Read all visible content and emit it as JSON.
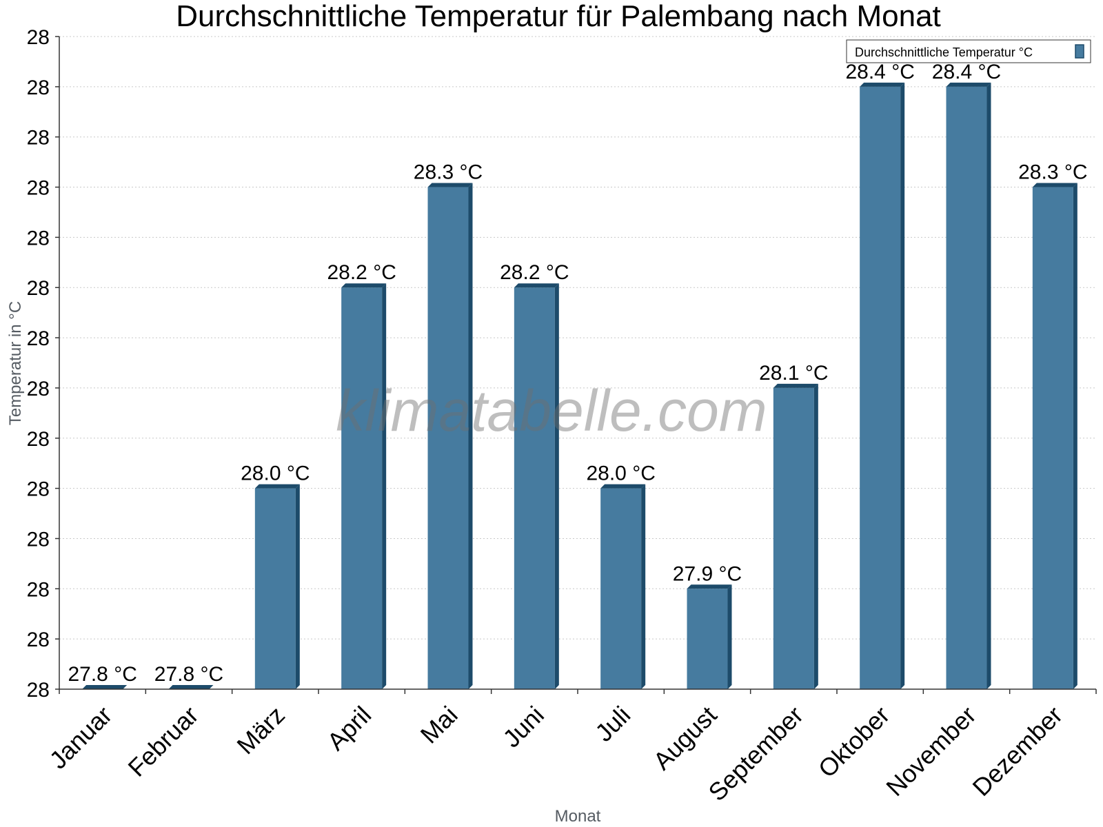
{
  "watermark": "klimatabelle.com",
  "colors": {
    "bar_front": "#467b9f",
    "bar_side": "#1d4b6a",
    "bar_top": "#1d4b6a",
    "grid": "#c8c8c8",
    "axis": "#333333"
  },
  "chart_data": {
    "type": "bar",
    "title": "Durchschnittliche Temperatur für Palembang nach Monat",
    "xlabel": "Monat",
    "ylabel": "Temperatur in °C",
    "categories": [
      "Januar",
      "Februar",
      "März",
      "April",
      "Mai",
      "Juni",
      "Juli",
      "August",
      "September",
      "Oktober",
      "November",
      "Dezember"
    ],
    "series": [
      {
        "name": "Durchschnittliche Temperatur °C",
        "values": [
          27.8,
          27.8,
          28.0,
          28.2,
          28.3,
          28.2,
          28.0,
          27.9,
          28.1,
          28.4,
          28.4,
          28.3
        ],
        "data_labels": [
          "27.8 °C",
          "27.8 °C",
          "28.0 °C",
          "28.2 °C",
          "28.3 °C",
          "28.2 °C",
          "28.0 °C",
          "27.9 °C",
          "28.1 °C",
          "28.4 °C",
          "28.4 °C",
          "28.3 °C"
        ]
      }
    ],
    "ylim": [
      27.8,
      28.45
    ],
    "y_tick_values": [
      27.8,
      27.85,
      27.9,
      27.95,
      28.0,
      28.05,
      28.1,
      28.15,
      28.2,
      28.25,
      28.3,
      28.35,
      28.4,
      28.45
    ],
    "y_tick_labels": [
      "28",
      "28",
      "28",
      "28",
      "28",
      "28",
      "28",
      "28",
      "28",
      "28",
      "28",
      "28",
      "28",
      "28"
    ],
    "grid": "horizontal dotted",
    "legend": "top-right"
  }
}
